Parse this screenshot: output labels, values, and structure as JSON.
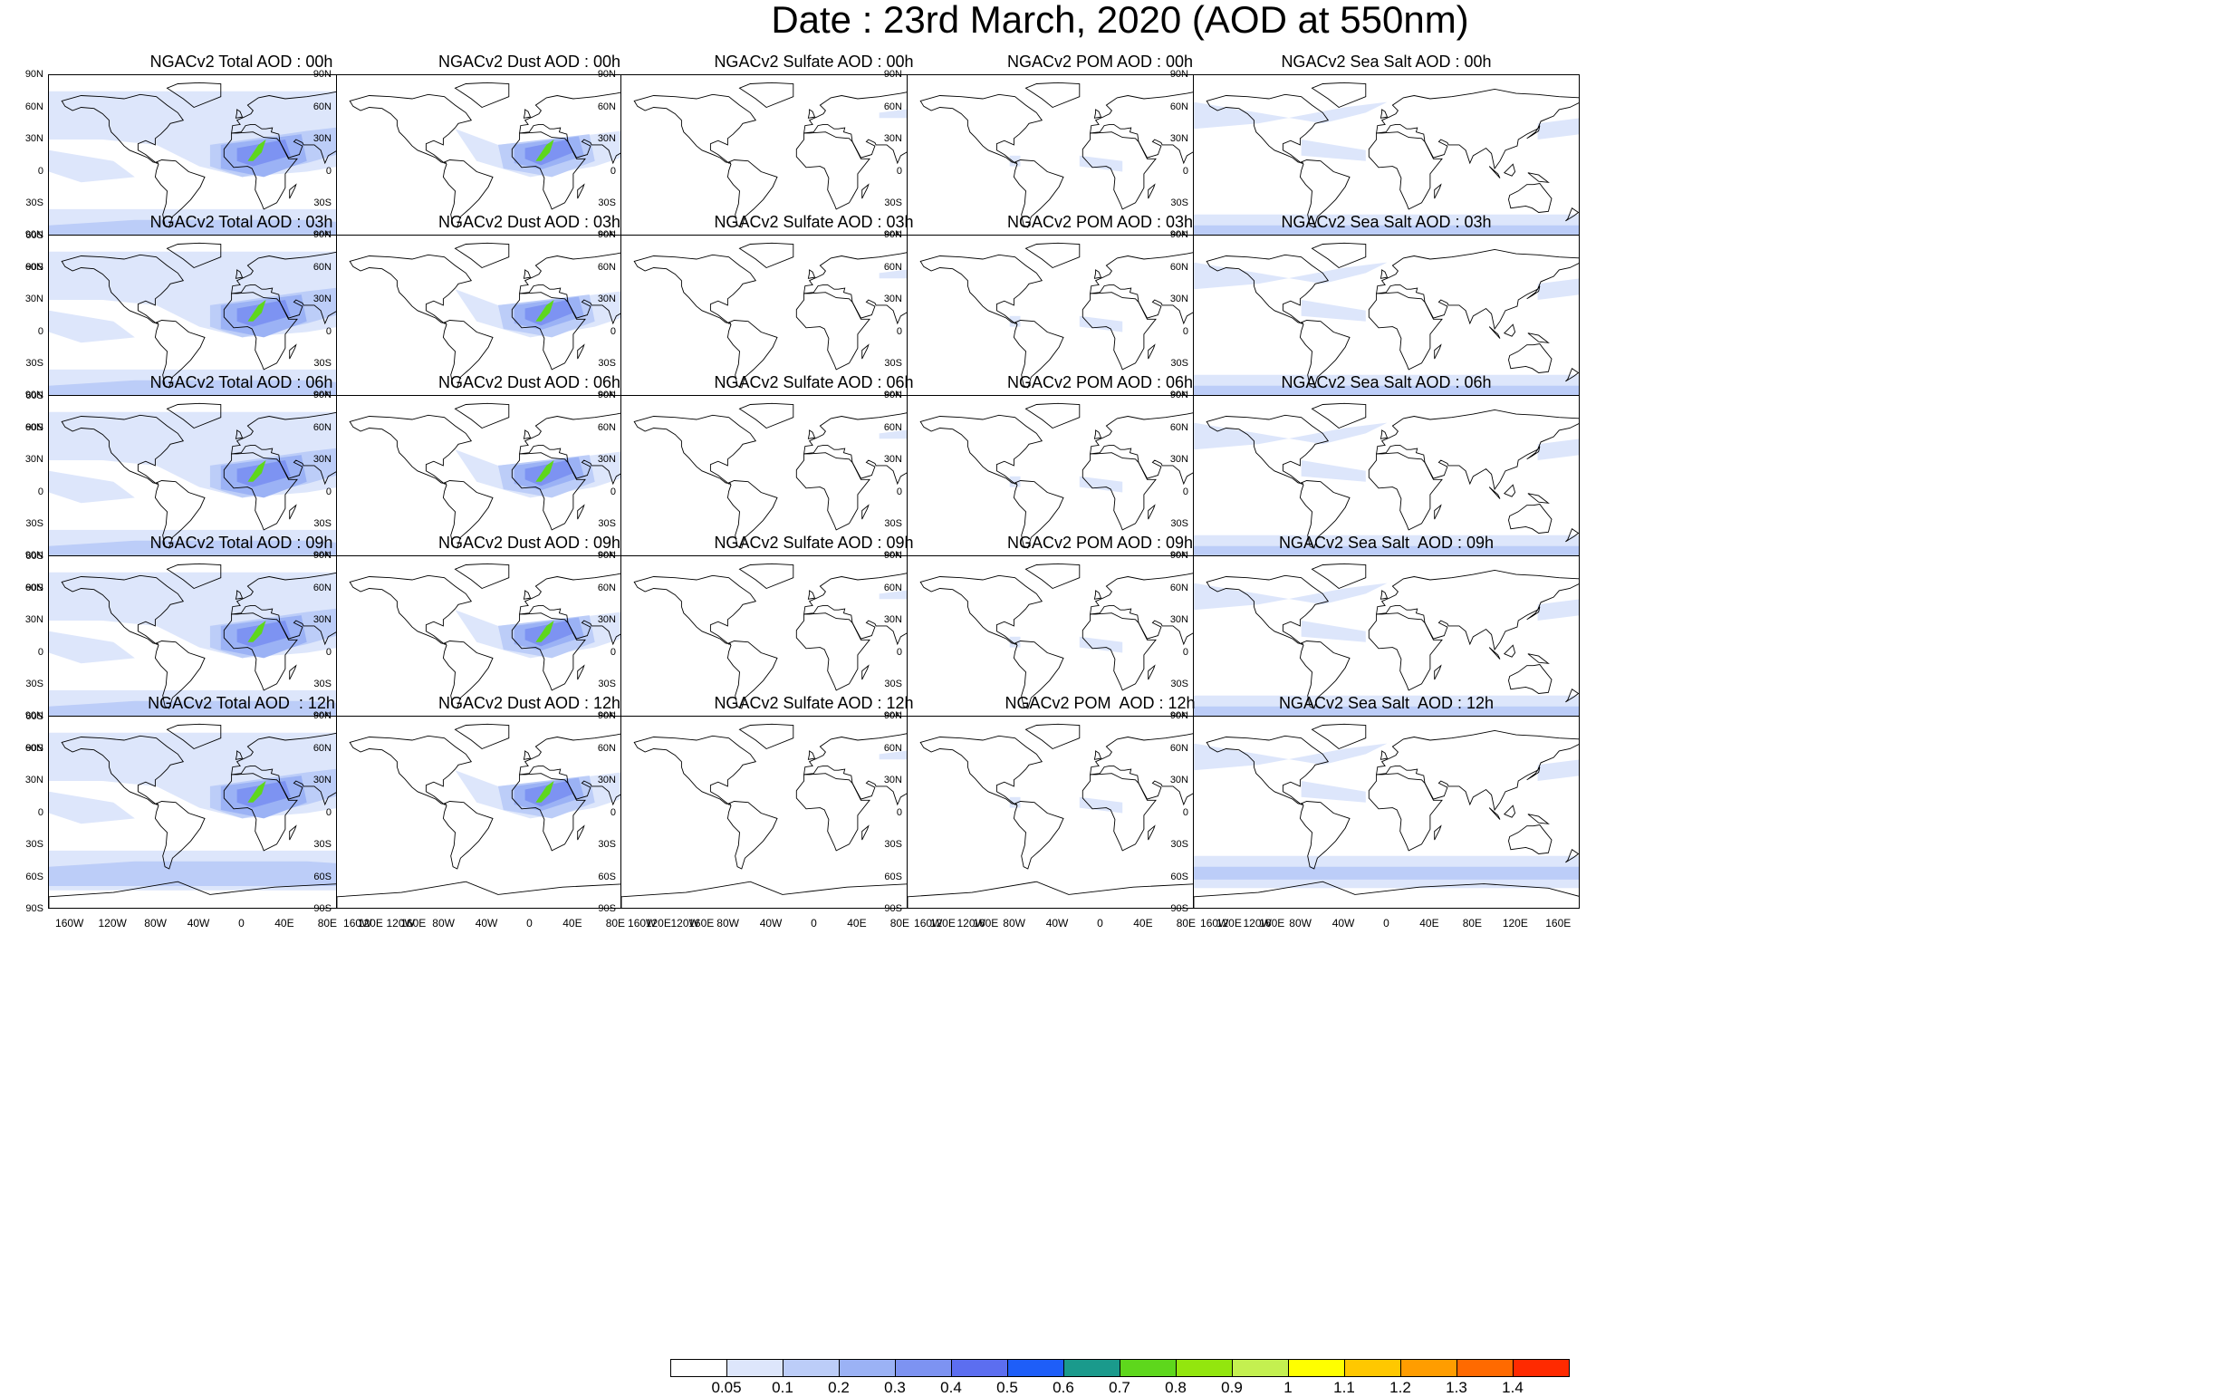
{
  "title": "Date : 23rd March, 2020 (AOD at 550nm)",
  "axes": {
    "lat_labels": [
      "90N",
      "60N",
      "30N",
      "0",
      "30S",
      "60S",
      "90S"
    ],
    "lon_labels": [
      "160W",
      "120W",
      "80W",
      "40W",
      "0",
      "40E",
      "80E",
      "120E",
      "160E"
    ],
    "lon_values": [
      -160,
      -120,
      -80,
      -40,
      0,
      40,
      80,
      120,
      160
    ]
  },
  "panels": [
    {
      "title": "NGACv2 Total AOD : 00h",
      "species": "total"
    },
    {
      "title": "NGACv2 Dust AOD : 00h",
      "species": "dust"
    },
    {
      "title": "NGACv2 Sulfate AOD : 00h",
      "species": "sulfate"
    },
    {
      "title": "NGACv2 POM AOD : 00h",
      "species": "pom"
    },
    {
      "title": "NGACv2 Sea Salt AOD : 00h",
      "species": "seasalt"
    },
    {
      "title": "NGACv2 Total AOD : 03h",
      "species": "total"
    },
    {
      "title": "NGACv2 Dust AOD : 03h",
      "species": "dust"
    },
    {
      "title": "NGACv2 Sulfate AOD : 03h",
      "species": "sulfate"
    },
    {
      "title": "NGACv2 POM AOD : 03h",
      "species": "pom"
    },
    {
      "title": "NGACv2 Sea Salt AOD : 03h",
      "species": "seasalt"
    },
    {
      "title": "NGACv2 Total AOD : 06h",
      "species": "total"
    },
    {
      "title": "NGACv2 Dust AOD : 06h",
      "species": "dust"
    },
    {
      "title": "NGACv2 Sulfate AOD : 06h",
      "species": "sulfate"
    },
    {
      "title": "NGACv2 POM AOD : 06h",
      "species": "pom"
    },
    {
      "title": "NGACv2 Sea Salt AOD : 06h",
      "species": "seasalt"
    },
    {
      "title": "NGACv2 Total AOD : 09h",
      "species": "total"
    },
    {
      "title": "NGACv2 Dust AOD : 09h",
      "species": "dust"
    },
    {
      "title": "NGACv2 Sulfate AOD : 09h",
      "species": "sulfate"
    },
    {
      "title": "NGACv2 POM AOD : 09h",
      "species": "pom"
    },
    {
      "title": "NGACv2 Sea Salt  AOD : 09h",
      "species": "seasalt"
    },
    {
      "title": "NGACv2 Total AOD  : 12h",
      "species": "total"
    },
    {
      "title": "NGACv2 Dust AOD : 12h",
      "species": "dust"
    },
    {
      "title": "NGACv2 Sulfate AOD : 12h",
      "species": "sulfate"
    },
    {
      "title": "NGACv2 POM  AOD : 12h",
      "species": "pom"
    },
    {
      "title": "NGACv2 Sea Salt  AOD : 12h",
      "species": "seasalt"
    }
  ],
  "colorbar": {
    "labels": [
      "0.05",
      "0.1",
      "0.2",
      "0.3",
      "0.4",
      "0.5",
      "0.6",
      "0.7",
      "0.8",
      "0.9",
      "1",
      "1.1",
      "1.2",
      "1.3",
      "1.4"
    ],
    "colors": [
      "#ffffff",
      "#dde6fb",
      "#bccdf8",
      "#9bb2f5",
      "#7d93f2",
      "#5c6ef0",
      "#1e5ef8",
      "#1a9a8c",
      "#5ed71c",
      "#93e60e",
      "#c4f050",
      "#ffff00",
      "#ffc800",
      "#ff9d00",
      "#ff6a00",
      "#ff2a00"
    ]
  },
  "colors": {
    "coast": "#000000",
    "ocean": "#ffffff",
    "low_aod": "#dde6fb",
    "mid_aod": "#9bb2f5",
    "high_aod": "#5c6ef0",
    "peak_aod": "#93e60e"
  }
}
